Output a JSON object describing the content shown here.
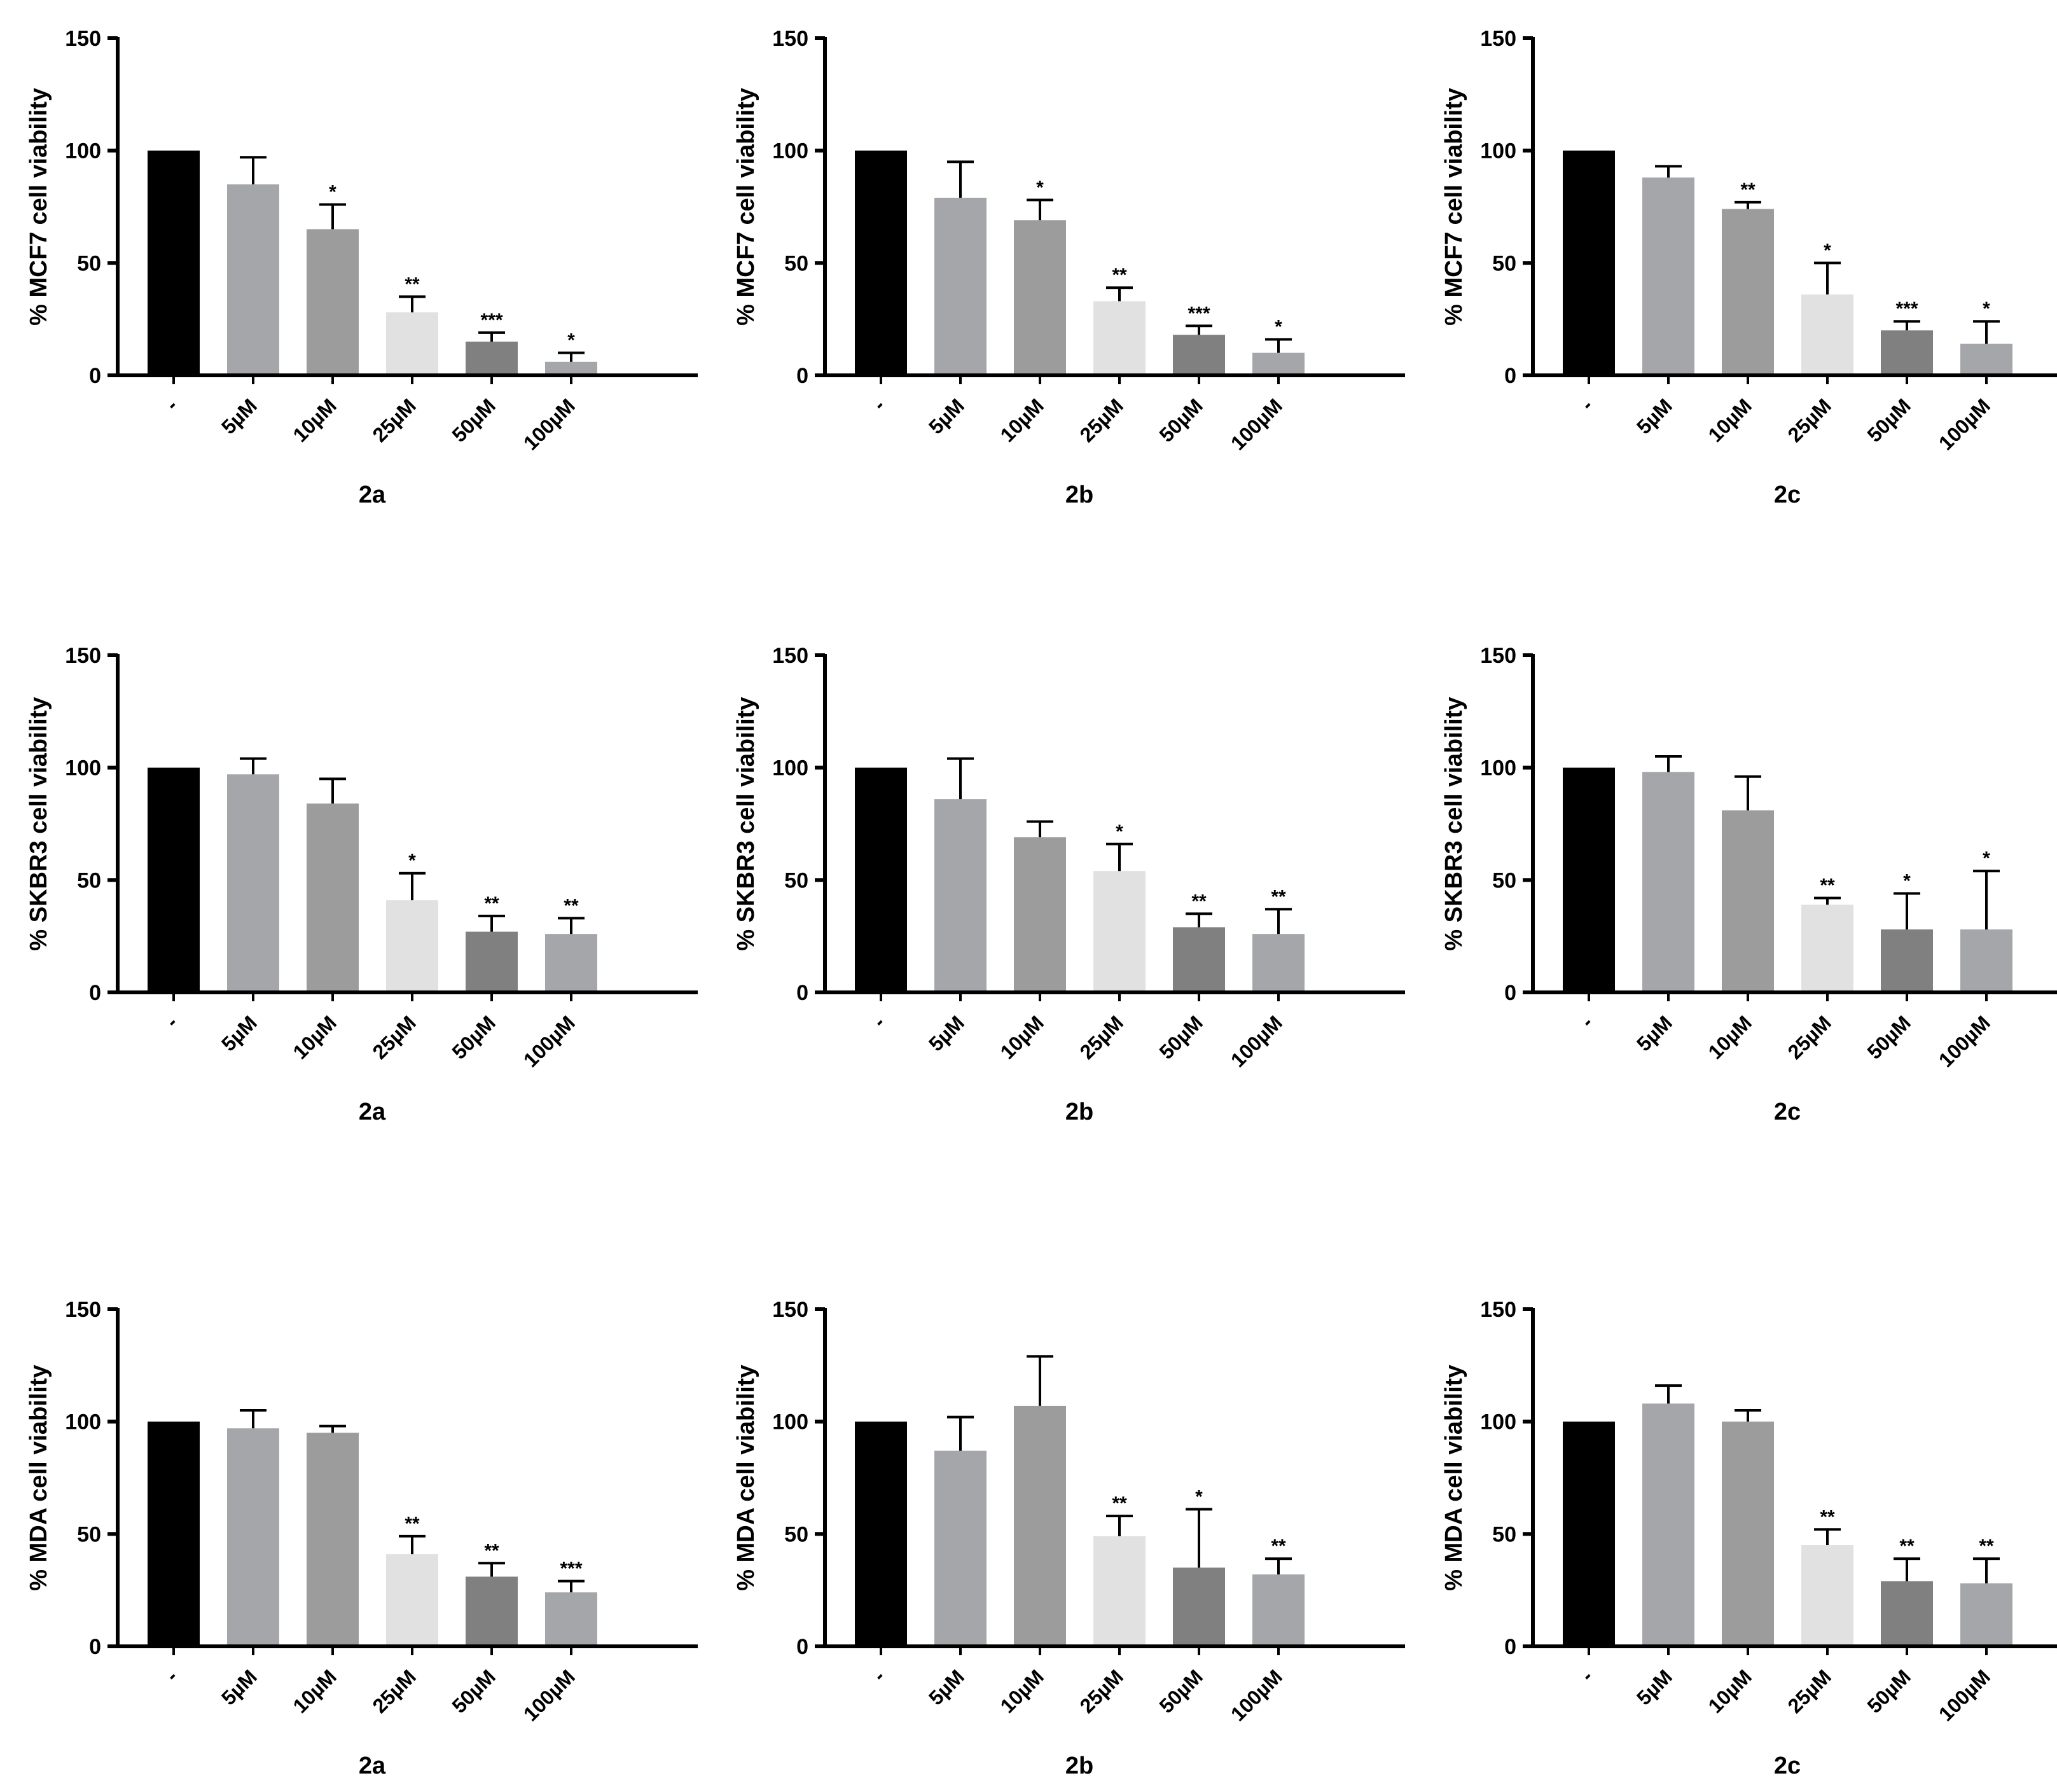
{
  "colors": {
    "control": "#000000",
    "5uM": "#a5a6a9",
    "10uM": "#9c9c9c",
    "25uM": "#e1e1e1",
    "50uM": "#808080",
    "100uM": "#a5a6a9",
    "axis": "#000000"
  },
  "chart_data": [
    {
      "type": "bar",
      "xlabel": "2a",
      "ylabel": "% MCF7 cell viability",
      "ylim": [
        0,
        150
      ],
      "yticks": [
        0,
        50,
        100,
        150
      ],
      "categories": [
        "-",
        "5µM",
        "10µM",
        "25µM",
        "50µM",
        "100µM"
      ],
      "values": [
        100,
        85,
        65,
        28,
        15,
        6
      ],
      "errors": [
        0,
        12,
        11,
        7,
        4,
        4
      ],
      "significance": [
        "",
        "",
        "*",
        "**",
        "***",
        "*"
      ]
    },
    {
      "type": "bar",
      "xlabel": "2b",
      "ylabel": "% MCF7 cell viability",
      "ylim": [
        0,
        150
      ],
      "yticks": [
        0,
        50,
        100,
        150
      ],
      "categories": [
        "-",
        "5µM",
        "10µM",
        "25µM",
        "50µM",
        "100µM"
      ],
      "values": [
        100,
        79,
        69,
        33,
        18,
        10
      ],
      "errors": [
        0,
        16,
        9,
        6,
        4,
        6
      ],
      "significance": [
        "",
        "",
        "*",
        "**",
        "***",
        "*"
      ]
    },
    {
      "type": "bar",
      "xlabel": "2c",
      "ylabel": "% MCF7 cell viability",
      "ylim": [
        0,
        150
      ],
      "yticks": [
        0,
        50,
        100,
        150
      ],
      "categories": [
        "-",
        "5µM",
        "10µM",
        "25µM",
        "50µM",
        "100µM"
      ],
      "values": [
        100,
        88,
        74,
        36,
        20,
        14
      ],
      "errors": [
        0,
        5,
        3,
        14,
        4,
        10
      ],
      "significance": [
        "",
        "",
        "**",
        "*",
        "***",
        "*"
      ]
    },
    {
      "type": "bar",
      "xlabel": "2a",
      "ylabel": "% SKBR3 cell viability",
      "ylim": [
        0,
        150
      ],
      "yticks": [
        0,
        50,
        100,
        150
      ],
      "categories": [
        "-",
        "5µM",
        "10µM",
        "25µM",
        "50µM",
        "100µM"
      ],
      "values": [
        100,
        97,
        84,
        41,
        27,
        26
      ],
      "errors": [
        0,
        7,
        11,
        12,
        7,
        7
      ],
      "significance": [
        "",
        "",
        "",
        "*",
        "**",
        "**"
      ]
    },
    {
      "type": "bar",
      "xlabel": "2b",
      "ylabel": "% SKBR3 cell viability",
      "ylim": [
        0,
        150
      ],
      "yticks": [
        0,
        50,
        100,
        150
      ],
      "categories": [
        "-",
        "5µM",
        "10µM",
        "25µM",
        "50µM",
        "100µM"
      ],
      "values": [
        100,
        86,
        69,
        54,
        29,
        26
      ],
      "errors": [
        0,
        18,
        7,
        12,
        6,
        11
      ],
      "significance": [
        "",
        "",
        "",
        "*",
        "**",
        "**"
      ]
    },
    {
      "type": "bar",
      "xlabel": "2c",
      "ylabel": "% SKBR3 cell viability",
      "ylim": [
        0,
        150
      ],
      "yticks": [
        0,
        50,
        100,
        150
      ],
      "categories": [
        "-",
        "5µM",
        "10µM",
        "25µM",
        "50µM",
        "100µM"
      ],
      "values": [
        100,
        98,
        81,
        39,
        28,
        28
      ],
      "errors": [
        0,
        7,
        15,
        3,
        16,
        26
      ],
      "significance": [
        "",
        "",
        "",
        "**",
        "*",
        "*"
      ]
    },
    {
      "type": "bar",
      "xlabel": "2a",
      "ylabel": "% MDA cell viability",
      "ylim": [
        0,
        150
      ],
      "yticks": [
        0,
        50,
        100,
        150
      ],
      "categories": [
        "-",
        "5µM",
        "10µM",
        "25µM",
        "50µM",
        "100µM"
      ],
      "values": [
        100,
        97,
        95,
        41,
        31,
        24
      ],
      "errors": [
        0,
        8,
        3,
        8,
        6,
        5
      ],
      "significance": [
        "",
        "",
        "",
        "**",
        "**",
        "***"
      ]
    },
    {
      "type": "bar",
      "xlabel": "2b",
      "ylabel": "% MDA cell viability",
      "ylim": [
        0,
        150
      ],
      "yticks": [
        0,
        50,
        100,
        150
      ],
      "categories": [
        "-",
        "5µM",
        "10µM",
        "25µM",
        "50µM",
        "100µM"
      ],
      "values": [
        100,
        87,
        107,
        49,
        35,
        32
      ],
      "errors": [
        0,
        15,
        22,
        9,
        26,
        7
      ],
      "significance": [
        "",
        "",
        "",
        "**",
        "*",
        "**"
      ]
    },
    {
      "type": "bar",
      "xlabel": "2c",
      "ylabel": "% MDA cell viability",
      "ylim": [
        0,
        150
      ],
      "yticks": [
        0,
        50,
        100,
        150
      ],
      "categories": [
        "-",
        "5µM",
        "10µM",
        "25µM",
        "50µM",
        "100µM"
      ],
      "values": [
        100,
        108,
        100,
        45,
        29,
        28
      ],
      "errors": [
        0,
        8,
        5,
        7,
        10,
        11
      ],
      "significance": [
        "",
        "",
        "",
        "**",
        "**",
        "**"
      ]
    }
  ]
}
